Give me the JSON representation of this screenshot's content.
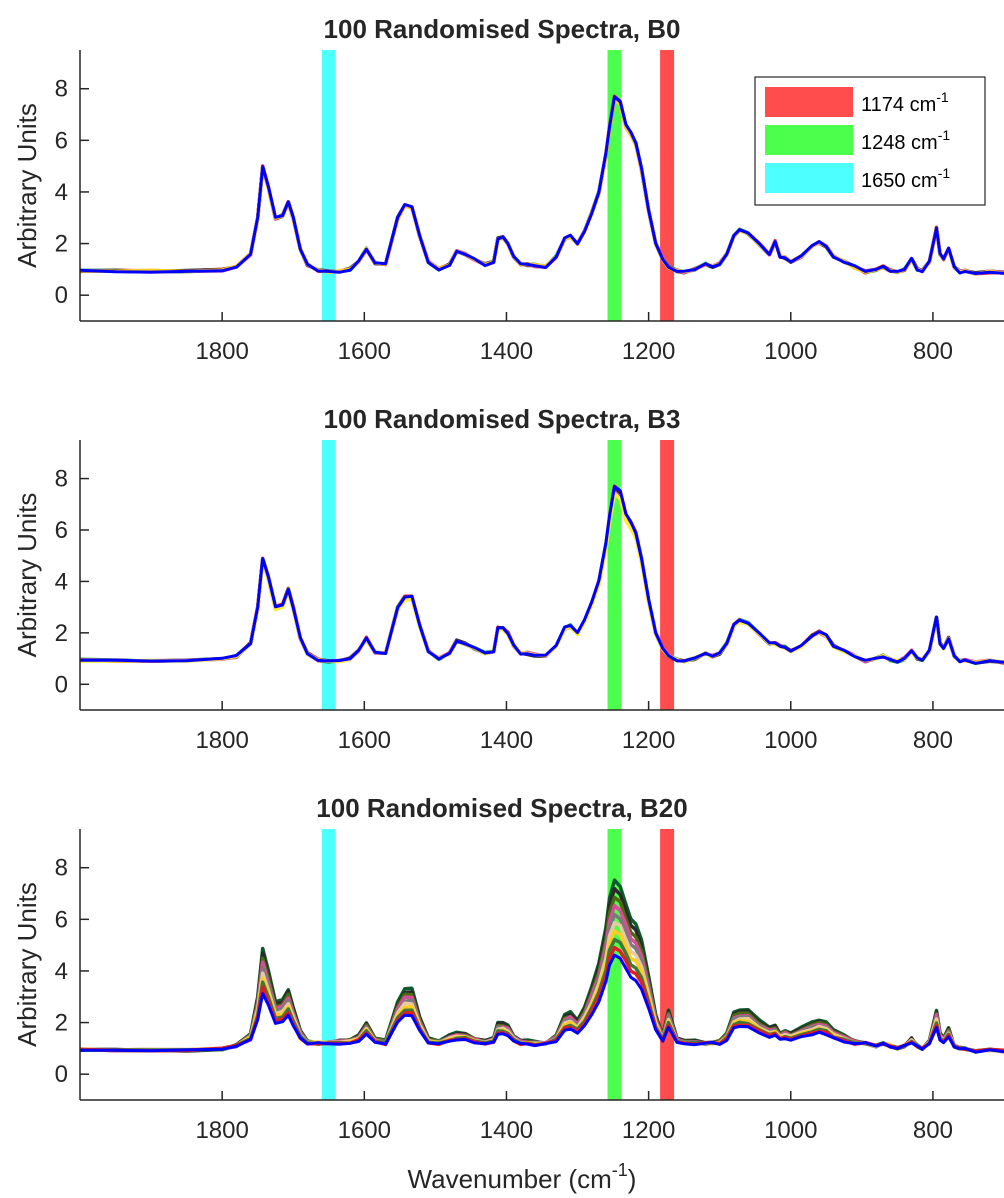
{
  "chart_data": [
    {
      "type": "line",
      "title": "100 Randomised Spectra, B0",
      "xlabel": "",
      "ylabel": "Arbitrary Units",
      "xlim": [
        2000,
        700
      ],
      "x_reversed": true,
      "ylim": [
        -1,
        9.5
      ],
      "xticks": [
        1800,
        1600,
        1400,
        1200,
        1000,
        800
      ],
      "yticks": [
        0,
        2,
        4,
        6,
        8
      ],
      "grid": false,
      "bands": [
        {
          "center": 1174,
          "color": "#ff4d4d"
        },
        {
          "center": 1248,
          "color": "#4cff4c"
        },
        {
          "center": 1650,
          "color": "#4dffff"
        }
      ],
      "legend": {
        "placement": "top-right",
        "entries": [
          {
            "label": "1174 cm",
            "sup": "-1",
            "color": "#ff4d4d"
          },
          {
            "label": "1248 cm",
            "sup": "-1",
            "color": "#4cff4c"
          },
          {
            "label": "1650 cm",
            "sup": "-1",
            "color": "#4dffff"
          }
        ]
      },
      "x": [
        2000,
        1950,
        1900,
        1850,
        1800,
        1780,
        1760,
        1750,
        1743,
        1735,
        1725,
        1715,
        1707,
        1700,
        1690,
        1680,
        1665,
        1650,
        1635,
        1620,
        1608,
        1597,
        1585,
        1570,
        1553,
        1543,
        1533,
        1522,
        1510,
        1495,
        1480,
        1470,
        1458,
        1445,
        1430,
        1418,
        1412,
        1405,
        1398,
        1390,
        1380,
        1370,
        1360,
        1345,
        1330,
        1318,
        1310,
        1300,
        1290,
        1280,
        1270,
        1260,
        1255,
        1248,
        1240,
        1232,
        1225,
        1218,
        1210,
        1200,
        1190,
        1180,
        1172,
        1160,
        1150,
        1135,
        1120,
        1110,
        1100,
        1090,
        1080,
        1072,
        1060,
        1045,
        1030,
        1022,
        1015,
        1008,
        1000,
        985,
        970,
        960,
        950,
        940,
        925,
        910,
        895,
        880,
        870,
        860,
        850,
        840,
        830,
        822,
        815,
        805,
        795,
        790,
        785,
        778,
        770,
        762,
        755,
        740,
        720,
        700
      ],
      "series": [
        {
          "values": [
            0.95,
            0.93,
            0.92,
            0.93,
            0.98,
            1.1,
            1.6,
            3.0,
            5.0,
            4.2,
            3.0,
            3.1,
            3.6,
            3.0,
            1.8,
            1.2,
            0.95,
            0.9,
            0.9,
            1.0,
            1.3,
            1.8,
            1.25,
            1.2,
            3.0,
            3.5,
            3.4,
            2.3,
            1.3,
            1.0,
            1.2,
            1.7,
            1.6,
            1.4,
            1.2,
            1.3,
            2.2,
            2.25,
            2.0,
            1.5,
            1.2,
            1.2,
            1.15,
            1.1,
            1.5,
            2.2,
            2.3,
            2.0,
            2.5,
            3.2,
            4.0,
            5.5,
            6.5,
            7.7,
            7.5,
            6.6,
            6.3,
            5.9,
            4.9,
            3.3,
            2.0,
            1.4,
            1.1,
            0.95,
            0.9,
            1.0,
            1.2,
            1.1,
            1.2,
            1.6,
            2.3,
            2.55,
            2.4,
            2.0,
            1.6,
            2.1,
            1.5,
            1.45,
            1.3,
            1.5,
            1.9,
            2.05,
            1.9,
            1.5,
            1.3,
            1.1,
            0.9,
            1.0,
            1.1,
            0.95,
            0.9,
            1.0,
            1.4,
            1.0,
            0.95,
            1.3,
            2.6,
            1.6,
            1.4,
            1.8,
            1.1,
            0.9,
            0.95,
            0.85,
            0.9,
            0.85
          ],
          "spread": 0.1,
          "colors": [
            "#e02020",
            "#1faa5a",
            "#2a2a2a",
            "#d84c9a",
            "#ffcc22",
            "#0000ff"
          ]
        }
      ]
    },
    {
      "type": "line",
      "title": "100 Randomised Spectra, B3",
      "xlabel": "",
      "ylabel": "Arbitrary Units",
      "xlim": [
        2000,
        700
      ],
      "x_reversed": true,
      "ylim": [
        -1,
        9.5
      ],
      "xticks": [
        1800,
        1600,
        1400,
        1200,
        1000,
        800
      ],
      "yticks": [
        0,
        2,
        4,
        6,
        8
      ],
      "grid": false,
      "bands": [
        {
          "center": 1174,
          "color": "#ff4d4d"
        },
        {
          "center": 1248,
          "color": "#4cff4c"
        },
        {
          "center": 1650,
          "color": "#4dffff"
        }
      ],
      "x": [
        2000,
        1950,
        1900,
        1850,
        1800,
        1780,
        1760,
        1750,
        1743,
        1735,
        1725,
        1715,
        1707,
        1700,
        1690,
        1680,
        1665,
        1650,
        1635,
        1620,
        1608,
        1597,
        1585,
        1570,
        1553,
        1543,
        1533,
        1522,
        1510,
        1495,
        1480,
        1470,
        1458,
        1445,
        1430,
        1418,
        1412,
        1405,
        1398,
        1390,
        1380,
        1370,
        1360,
        1345,
        1330,
        1318,
        1310,
        1300,
        1290,
        1280,
        1270,
        1260,
        1255,
        1248,
        1240,
        1232,
        1225,
        1218,
        1210,
        1200,
        1190,
        1180,
        1172,
        1160,
        1150,
        1135,
        1120,
        1110,
        1100,
        1090,
        1080,
        1072,
        1060,
        1045,
        1030,
        1022,
        1015,
        1008,
        1000,
        985,
        970,
        960,
        950,
        940,
        925,
        910,
        895,
        880,
        870,
        860,
        850,
        840,
        830,
        822,
        815,
        805,
        795,
        790,
        785,
        778,
        770,
        762,
        755,
        740,
        720,
        700
      ],
      "series": [
        {
          "values": [
            0.95,
            0.93,
            0.92,
            0.93,
            0.98,
            1.1,
            1.6,
            3.0,
            4.9,
            4.2,
            3.0,
            3.1,
            3.7,
            3.0,
            1.8,
            1.2,
            0.95,
            0.9,
            0.9,
            1.0,
            1.3,
            1.8,
            1.25,
            1.2,
            3.0,
            3.4,
            3.4,
            2.3,
            1.3,
            1.0,
            1.2,
            1.7,
            1.6,
            1.4,
            1.2,
            1.3,
            2.2,
            2.2,
            2.0,
            1.5,
            1.2,
            1.2,
            1.15,
            1.1,
            1.5,
            2.2,
            2.3,
            2.0,
            2.5,
            3.2,
            4.0,
            5.5,
            6.5,
            7.7,
            7.5,
            6.6,
            6.3,
            5.9,
            4.9,
            3.3,
            2.0,
            1.4,
            1.1,
            0.95,
            0.9,
            1.0,
            1.2,
            1.1,
            1.2,
            1.6,
            2.3,
            2.5,
            2.4,
            2.0,
            1.6,
            1.6,
            1.5,
            1.45,
            1.3,
            1.5,
            1.9,
            2.05,
            1.9,
            1.5,
            1.3,
            1.1,
            0.9,
            1.0,
            1.1,
            0.95,
            0.9,
            1.0,
            1.3,
            1.0,
            0.95,
            1.3,
            2.6,
            1.6,
            1.4,
            1.8,
            1.1,
            0.9,
            0.95,
            0.85,
            0.9,
            0.85
          ],
          "spread": 0.22,
          "colors": [
            "#e02020",
            "#1faa5a",
            "#2a2a2a",
            "#d84c9a",
            "#ffee33",
            "#0000ff"
          ]
        }
      ]
    },
    {
      "type": "line",
      "title": "100 Randomised Spectra, B20",
      "xlabel": "Wavenumber (cm",
      "xlabel_sup": "-1",
      "xlabel_tail": ")",
      "ylabel": "Arbitrary Units",
      "xlim": [
        2000,
        700
      ],
      "x_reversed": true,
      "ylim": [
        -1,
        9.5
      ],
      "xticks": [
        1800,
        1600,
        1400,
        1200,
        1000,
        800
      ],
      "yticks": [
        0,
        2,
        4,
        6,
        8
      ],
      "grid": false,
      "bands": [
        {
          "center": 1174,
          "color": "#ff4d4d"
        },
        {
          "center": 1248,
          "color": "#4cff4c"
        },
        {
          "center": 1650,
          "color": "#4dffff"
        }
      ],
      "x": [
        2000,
        1950,
        1900,
        1850,
        1800,
        1780,
        1760,
        1750,
        1743,
        1735,
        1725,
        1715,
        1707,
        1700,
        1690,
        1680,
        1665,
        1650,
        1635,
        1620,
        1608,
        1597,
        1585,
        1570,
        1553,
        1543,
        1533,
        1522,
        1510,
        1495,
        1480,
        1470,
        1458,
        1445,
        1430,
        1418,
        1412,
        1405,
        1398,
        1390,
        1380,
        1370,
        1360,
        1345,
        1330,
        1318,
        1310,
        1300,
        1290,
        1280,
        1270,
        1260,
        1255,
        1248,
        1240,
        1232,
        1225,
        1218,
        1210,
        1200,
        1190,
        1180,
        1172,
        1160,
        1150,
        1135,
        1120,
        1110,
        1100,
        1090,
        1080,
        1072,
        1060,
        1045,
        1030,
        1022,
        1015,
        1008,
        1000,
        985,
        970,
        960,
        950,
        940,
        925,
        910,
        895,
        880,
        870,
        860,
        850,
        840,
        830,
        822,
        815,
        805,
        795,
        790,
        785,
        778,
        770,
        762,
        755,
        740,
        720,
        700
      ],
      "series": [
        {
          "name_hidden": "high",
          "values": [
            0.95,
            0.93,
            0.92,
            0.93,
            0.98,
            1.1,
            1.6,
            3.0,
            4.9,
            4.0,
            2.8,
            2.9,
            3.3,
            2.6,
            1.7,
            1.3,
            1.2,
            1.2,
            1.3,
            1.35,
            1.5,
            2.0,
            1.4,
            1.3,
            2.8,
            3.3,
            3.3,
            2.2,
            1.4,
            1.3,
            1.5,
            1.6,
            1.6,
            1.4,
            1.3,
            1.4,
            2.0,
            2.0,
            1.9,
            1.5,
            1.3,
            1.3,
            1.25,
            1.2,
            1.5,
            2.3,
            2.4,
            2.1,
            2.6,
            3.4,
            4.3,
            5.7,
            6.8,
            7.5,
            7.3,
            6.6,
            6.0,
            5.8,
            5.2,
            3.8,
            2.3,
            1.5,
            2.5,
            1.4,
            1.3,
            1.3,
            1.2,
            1.2,
            1.3,
            1.6,
            2.4,
            2.5,
            2.5,
            2.1,
            1.8,
            1.9,
            1.6,
            1.7,
            1.6,
            1.8,
            2.0,
            2.1,
            2.0,
            1.7,
            1.5,
            1.3,
            1.2,
            1.1,
            1.2,
            1.1,
            1.0,
            1.1,
            1.4,
            1.1,
            1.0,
            1.3,
            2.5,
            1.6,
            1.4,
            1.8,
            1.1,
            1.0,
            1.0,
            0.9,
            0.95,
            0.9
          ],
          "spread": 1.6,
          "colors": [
            "#0c5c2a",
            "#2a2a2a",
            "#4a6b10",
            "#d84c9a",
            "#7a7a7a",
            "#e8c9a0",
            "#ffcc22",
            "#3b7a3b",
            "#e02020",
            "#0000ff"
          ]
        }
      ]
    }
  ]
}
